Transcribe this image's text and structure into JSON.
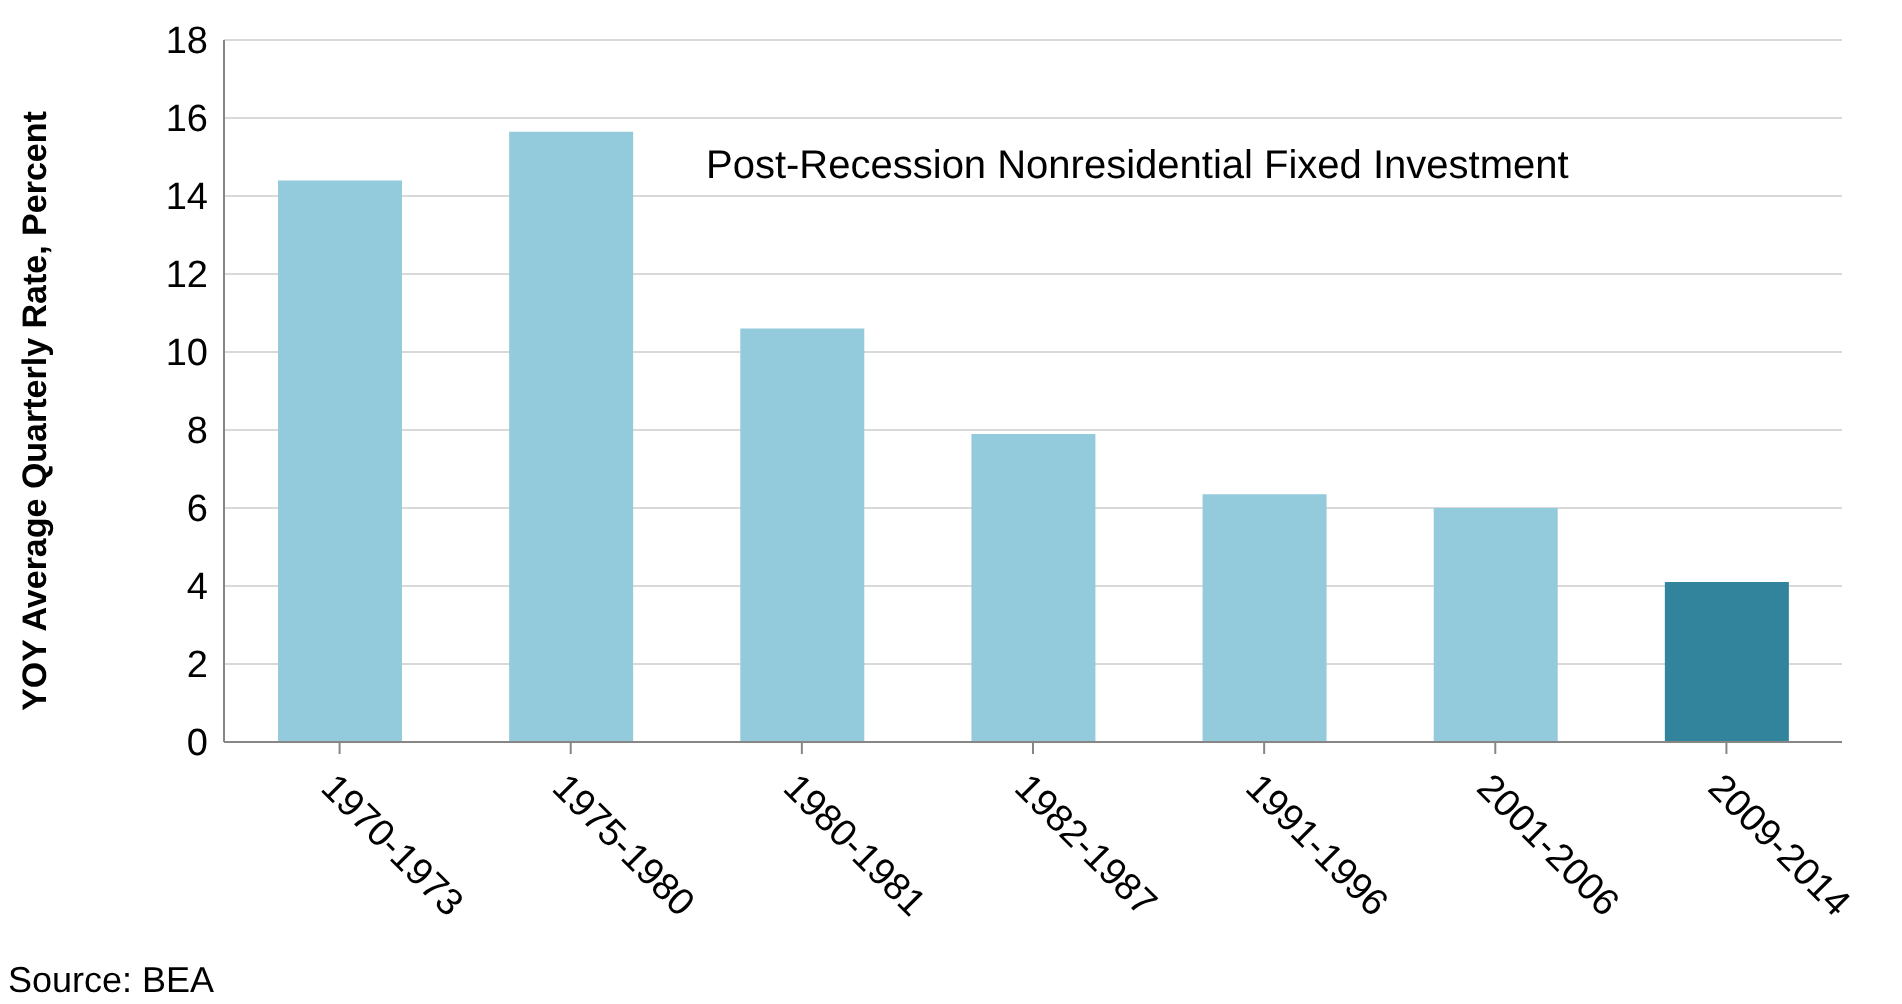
{
  "chart_data": {
    "type": "bar",
    "title": "Post-Recession Nonresidential Fixed Investment",
    "ylabel": "YOY Average Quarterly Rate, Percent",
    "categories": [
      "1970-1973",
      "1975-1980",
      "1980-1981",
      "1982-1987",
      "1991-1996",
      "2001-2006",
      "2009-2014"
    ],
    "values": [
      14.4,
      15.65,
      10.6,
      7.9,
      6.35,
      6.0,
      4.1
    ],
    "colors": [
      "#93cbdc",
      "#93cbdc",
      "#93cbdc",
      "#93cbdc",
      "#93cbdc",
      "#93cbdc",
      "#31849b"
    ],
    "ylim": [
      0,
      18
    ],
    "yticks": [
      0,
      2,
      4,
      6,
      8,
      10,
      12,
      14,
      16,
      18
    ],
    "grid": "y",
    "annotations": [
      "Source: BEA"
    ]
  }
}
